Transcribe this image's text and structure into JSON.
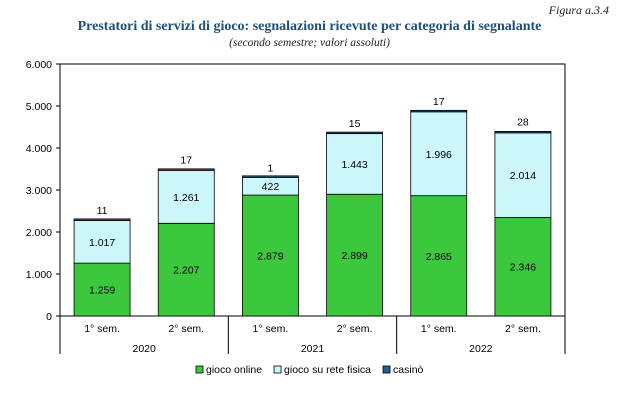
{
  "figure_label": "Figura a.3.4",
  "chart_data": {
    "type": "bar",
    "stacked": true,
    "title": "Prestatori di servizi di gioco: segnalazioni ricevute per categoria di segnalante",
    "subtitle": "(secondo semestre; valori assoluti)",
    "categories": [
      "1° sem.",
      "2° sem.",
      "1° sem.",
      "2° sem.",
      "1° sem.",
      "2° sem."
    ],
    "groups": [
      {
        "label": "2020",
        "categories": [
          0,
          1
        ]
      },
      {
        "label": "2021",
        "categories": [
          2,
          3
        ]
      },
      {
        "label": "2022",
        "categories": [
          4,
          5
        ]
      }
    ],
    "series": [
      {
        "name": "gioco online",
        "color": "#3cc83c",
        "values": [
          1259,
          2207,
          2879,
          2899,
          2865,
          2346
        ],
        "labels": [
          "1.259",
          "2.207",
          "2.879",
          "2.899",
          "2.865",
          "2.346"
        ]
      },
      {
        "name": "gioco su rete fisica",
        "color": "#ccf7fa",
        "values": [
          1017,
          1261,
          422,
          1443,
          1996,
          2014
        ],
        "labels": [
          "1.017",
          "1.261",
          "422",
          "1.443",
          "1.996",
          "2.014"
        ]
      },
      {
        "name": "casinò",
        "color": "#1f5e96",
        "values": [
          11,
          17,
          1,
          15,
          17,
          28
        ],
        "labels": [
          "11",
          "17",
          "1",
          "15",
          "17",
          "28"
        ]
      }
    ],
    "ylim": [
      0,
      6000
    ],
    "yticks": [
      0,
      1000,
      2000,
      3000,
      4000,
      5000,
      6000
    ],
    "ytick_labels": [
      "0",
      "1.000",
      "2.000",
      "3.000",
      "4.000",
      "5.000",
      "6.000"
    ],
    "grid": false,
    "legend_position": "bottom"
  }
}
